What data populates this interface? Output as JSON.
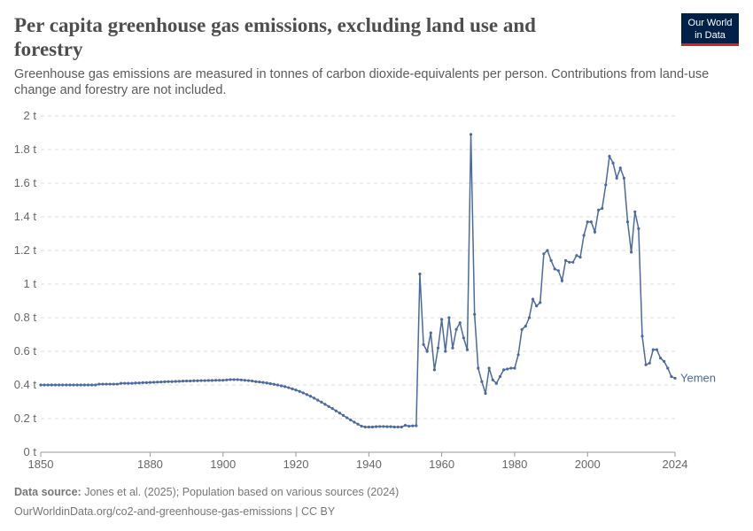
{
  "logo": {
    "line1": "Our World",
    "line2": "in Data"
  },
  "chart_data": {
    "type": "line",
    "title": "Per capita greenhouse gas emissions, excluding land use and",
    "title_line2": "forestry",
    "subtitle": "Greenhouse gas emissions are measured in tonnes of carbon dioxide-equivalents per person. Contributions from land-use",
    "subtitle_line2": "change and forestry are not included.",
    "source_label": "Data source:",
    "source": "Jones et al. (2025); Population based on various sources (2024)",
    "url": "OurWorldinData.org/co2-and-greenhouse-gas-emissions | CC BY",
    "xlim": [
      1850,
      2024
    ],
    "xticks": [
      1850,
      1880,
      1900,
      1920,
      1940,
      1960,
      1980,
      2000,
      2024
    ],
    "ylim": [
      0,
      2
    ],
    "yticks": [
      {
        "value": 0,
        "label": "0 t"
      },
      {
        "value": 0.2,
        "label": "0.2 t"
      },
      {
        "value": 0.4,
        "label": "0.4 t"
      },
      {
        "value": 0.6,
        "label": "0.6 t"
      },
      {
        "value": 0.8,
        "label": "0.8 t"
      },
      {
        "value": 1,
        "label": "1 t"
      },
      {
        "value": 1.2,
        "label": "1.2 t"
      },
      {
        "value": 1.4,
        "label": "1.4 t"
      },
      {
        "value": 1.6,
        "label": "1.6 t"
      },
      {
        "value": 1.8,
        "label": "1.8 t"
      },
      {
        "value": 2,
        "label": "2 t"
      }
    ],
    "grid": true,
    "x": [
      1850,
      1851,
      1852,
      1853,
      1854,
      1855,
      1856,
      1857,
      1858,
      1859,
      1860,
      1861,
      1862,
      1863,
      1864,
      1865,
      1866,
      1867,
      1868,
      1869,
      1870,
      1871,
      1872,
      1873,
      1874,
      1875,
      1876,
      1877,
      1878,
      1879,
      1880,
      1881,
      1882,
      1883,
      1884,
      1885,
      1886,
      1887,
      1888,
      1889,
      1890,
      1891,
      1892,
      1893,
      1894,
      1895,
      1896,
      1897,
      1898,
      1899,
      1900,
      1901,
      1902,
      1903,
      1904,
      1905,
      1906,
      1907,
      1908,
      1909,
      1910,
      1911,
      1912,
      1913,
      1914,
      1915,
      1916,
      1917,
      1918,
      1919,
      1920,
      1921,
      1922,
      1923,
      1924,
      1925,
      1926,
      1927,
      1928,
      1929,
      1930,
      1931,
      1932,
      1933,
      1934,
      1935,
      1936,
      1937,
      1938,
      1939,
      1940,
      1941,
      1942,
      1943,
      1944,
      1945,
      1946,
      1947,
      1948,
      1949,
      1950,
      1951,
      1952,
      1953,
      1954,
      1955,
      1956,
      1957,
      1958,
      1959,
      1960,
      1961,
      1962,
      1963,
      1964,
      1965,
      1966,
      1967,
      1968,
      1969,
      1970,
      1971,
      1972,
      1973,
      1974,
      1975,
      1976,
      1977,
      1978,
      1979,
      1980,
      1981,
      1982,
      1983,
      1984,
      1985,
      1986,
      1987,
      1988,
      1989,
      1990,
      1991,
      1992,
      1993,
      1994,
      1995,
      1996,
      1997,
      1998,
      1999,
      2000,
      2001,
      2002,
      2003,
      2004,
      2005,
      2006,
      2007,
      2008,
      2009,
      2010,
      2011,
      2012,
      2013,
      2014,
      2015,
      2016,
      2017,
      2018,
      2019,
      2020,
      2021,
      2022,
      2023,
      2024
    ],
    "series": [
      {
        "name": "Yemen",
        "color": "#4c6a9c",
        "values": [
          0.4,
          0.4,
          0.4,
          0.4,
          0.4,
          0.4,
          0.4,
          0.4,
          0.4,
          0.4,
          0.4,
          0.4,
          0.4,
          0.4,
          0.4,
          0.4,
          0.405,
          0.405,
          0.405,
          0.405,
          0.405,
          0.405,
          0.41,
          0.41,
          0.41,
          0.41,
          0.412,
          0.412,
          0.414,
          0.414,
          0.415,
          0.416,
          0.417,
          0.418,
          0.419,
          0.42,
          0.42,
          0.421,
          0.422,
          0.423,
          0.424,
          0.424,
          0.425,
          0.425,
          0.426,
          0.426,
          0.427,
          0.427,
          0.428,
          0.428,
          0.428,
          0.43,
          0.432,
          0.432,
          0.432,
          0.43,
          0.428,
          0.426,
          0.424,
          0.42,
          0.418,
          0.415,
          0.412,
          0.408,
          0.404,
          0.4,
          0.395,
          0.39,
          0.384,
          0.377,
          0.37,
          0.362,
          0.353,
          0.343,
          0.333,
          0.322,
          0.31,
          0.298,
          0.285,
          0.272,
          0.26,
          0.246,
          0.233,
          0.219,
          0.205,
          0.192,
          0.179,
          0.167,
          0.155,
          0.15,
          0.15,
          0.15,
          0.152,
          0.153,
          0.153,
          0.152,
          0.152,
          0.15,
          0.15,
          0.15,
          0.16,
          0.155,
          0.157,
          0.158,
          1.06,
          0.64,
          0.6,
          0.71,
          0.49,
          0.62,
          0.79,
          0.6,
          0.8,
          0.62,
          0.73,
          0.77,
          0.68,
          0.61,
          1.89,
          0.82,
          0.5,
          0.42,
          0.35,
          0.5,
          0.43,
          0.41,
          0.45,
          0.49,
          0.495,
          0.5,
          0.5,
          0.58,
          0.73,
          0.75,
          0.8,
          0.91,
          0.87,
          0.89,
          1.18,
          1.2,
          1.14,
          1.09,
          1.08,
          1.02,
          1.14,
          1.13,
          1.13,
          1.17,
          1.16,
          1.29,
          1.37,
          1.37,
          1.31,
          1.44,
          1.45,
          1.59,
          1.76,
          1.72,
          1.63,
          1.69,
          1.63,
          1.37,
          1.19,
          1.43,
          1.33,
          0.69,
          0.52,
          0.53,
          0.61,
          0.61,
          0.56,
          0.54,
          0.5,
          0.45,
          0.44
        ]
      }
    ]
  }
}
